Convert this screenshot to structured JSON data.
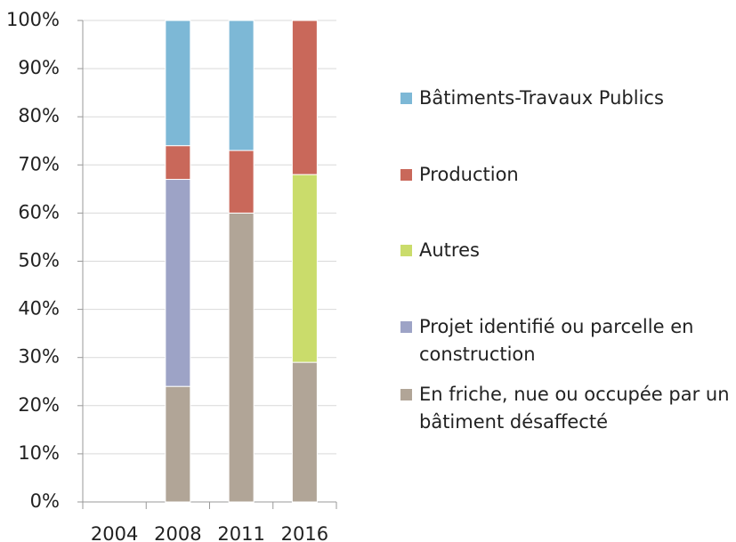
{
  "chart_data": {
    "type": "stacked_bar",
    "categories": [
      "2004",
      "2008",
      "2011",
      "2016"
    ],
    "series": [
      {
        "name": "Bâtiments-Travaux Publics",
        "color": "#7db8d6",
        "values": [
          null,
          26,
          27,
          null
        ]
      },
      {
        "name": "Production",
        "color": "#c9685a",
        "values": [
          null,
          7,
          13,
          32
        ]
      },
      {
        "name": "Autres",
        "color": "#cadc6b",
        "values": [
          null,
          null,
          null,
          39
        ]
      },
      {
        "name": "Projet identifié ou parcelle en construction",
        "color": "#9da3c6",
        "values": [
          null,
          43,
          null,
          null
        ]
      },
      {
        "name": "En friche, nue ou occupée par un bâtiment désaffecté",
        "color": "#b1a597",
        "values": [
          null,
          24,
          60,
          29
        ]
      }
    ],
    "ylim": [
      0,
      100
    ],
    "yticks": [
      {
        "value": 0,
        "label": "0%"
      },
      {
        "value": 10,
        "label": "10%"
      },
      {
        "value": 20,
        "label": "20%"
      },
      {
        "value": 30,
        "label": "30%"
      },
      {
        "value": 40,
        "label": "40%"
      },
      {
        "value": 50,
        "label": "50%"
      },
      {
        "value": 60,
        "label": "60%"
      },
      {
        "value": 70,
        "label": "70%"
      },
      {
        "value": 80,
        "label": "80%"
      },
      {
        "value": 90,
        "label": "90%"
      },
      {
        "value": 100,
        "label": "100%"
      }
    ],
    "grid": true,
    "legend": "right"
  }
}
